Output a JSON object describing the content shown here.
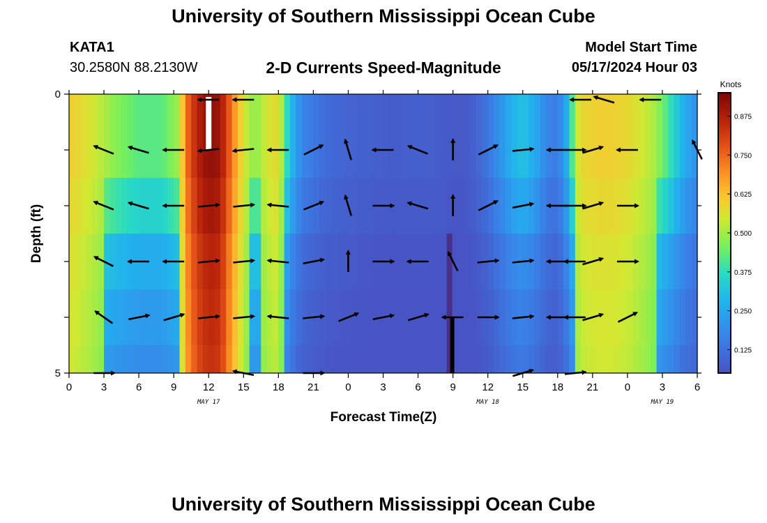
{
  "header": {
    "title": "University of Southern Mississippi Ocean Cube",
    "station_id": "KATA1",
    "station_coords": "30.2580N  88.2130W",
    "subtitle": "2-D Currents Speed-Magnitude",
    "start_label": "Model Start Time",
    "start_value": "05/17/2024 Hour 03"
  },
  "footer": {
    "title": "University of Southern Mississippi Ocean Cube"
  },
  "chart_data": {
    "type": "heatmap",
    "title": "2-D Currents Speed-Magnitude",
    "xlabel": "Forecast Time(Z)",
    "ylabel": "Depth (ft)",
    "colorbar_title": "Knots",
    "colorbar_ticks": [
      "0.125",
      "0.250",
      "0.375",
      "0.500",
      "0.625",
      "0.750",
      "0.875"
    ],
    "colorbar_range": [
      0.05,
      0.95
    ],
    "xlim": [
      0,
      54
    ],
    "ylim": [
      0,
      5
    ],
    "x_tick_labels": [
      "0",
      "3",
      "6",
      "9",
      "12",
      "15",
      "18",
      "21",
      "0",
      "3",
      "6",
      "9",
      "12",
      "15",
      "18",
      "21",
      "0",
      "3",
      "6"
    ],
    "y_tick_labels": [
      "0",
      "5"
    ],
    "date_labels": [
      {
        "text": "MAY 17",
        "x": 12
      },
      {
        "text": "MAY 18",
        "x": 36
      },
      {
        "text": "MAY 19",
        "x": 51
      }
    ],
    "speed_profile": [
      {
        "x": 0,
        "v": 0.6
      },
      {
        "x": 2,
        "v": 0.55
      },
      {
        "x": 4,
        "v": 0.47
      },
      {
        "x": 6,
        "v": 0.42
      },
      {
        "x": 8,
        "v": 0.42
      },
      {
        "x": 9.5,
        "v": 0.5
      },
      {
        "x": 10,
        "v": 0.72
      },
      {
        "x": 11,
        "v": 0.86
      },
      {
        "x": 12,
        "v": 0.92
      },
      {
        "x": 13,
        "v": 0.9
      },
      {
        "x": 14,
        "v": 0.72
      },
      {
        "x": 15,
        "v": 0.55
      },
      {
        "x": 16,
        "v": 0.47
      },
      {
        "x": 17,
        "v": 0.55
      },
      {
        "x": 18,
        "v": 0.58
      },
      {
        "x": 19,
        "v": 0.3
      },
      {
        "x": 20,
        "v": 0.17
      },
      {
        "x": 22,
        "v": 0.11
      },
      {
        "x": 24,
        "v": 0.09
      },
      {
        "x": 26,
        "v": 0.08
      },
      {
        "x": 28,
        "v": 0.07
      },
      {
        "x": 30,
        "v": 0.08
      },
      {
        "x": 32,
        "v": 0.07
      },
      {
        "x": 33,
        "v": 0.06
      },
      {
        "x": 34,
        "v": 0.06
      },
      {
        "x": 35,
        "v": 0.09
      },
      {
        "x": 36,
        "v": 0.13
      },
      {
        "x": 37,
        "v": 0.2
      },
      {
        "x": 38,
        "v": 0.27
      },
      {
        "x": 39,
        "v": 0.31
      },
      {
        "x": 40,
        "v": 0.26
      },
      {
        "x": 41,
        "v": 0.17
      },
      {
        "x": 42,
        "v": 0.14
      },
      {
        "x": 43,
        "v": 0.3
      },
      {
        "x": 43.5,
        "v": 0.52
      },
      {
        "x": 44,
        "v": 0.58
      },
      {
        "x": 46,
        "v": 0.6
      },
      {
        "x": 48,
        "v": 0.58
      },
      {
        "x": 50,
        "v": 0.52
      },
      {
        "x": 51,
        "v": 0.45
      },
      {
        "x": 52,
        "v": 0.35
      },
      {
        "x": 53,
        "v": 0.25
      },
      {
        "x": 54,
        "v": 0.2
      }
    ],
    "depth_factors": [
      1.0,
      1.0,
      0.82,
      0.6,
      0.5,
      0.42
    ],
    "vector_rows": [
      0.1,
      1,
      2,
      3,
      4,
      5
    ],
    "vectors": [
      [
        {
          "x": 12,
          "u": -1,
          "v": 0
        },
        {
          "x": 15,
          "u": -1,
          "v": 0
        },
        {
          "x": 44,
          "u": -1,
          "v": 0
        },
        {
          "x": 46,
          "u": -1,
          "v": 0.3
        },
        {
          "x": 50,
          "u": -1,
          "v": 0
        }
      ],
      [
        {
          "x": 3,
          "u": -1,
          "v": 0.4
        },
        {
          "x": 6,
          "u": -1,
          "v": 0.3
        },
        {
          "x": 9,
          "u": -1,
          "v": 0
        },
        {
          "x": 12,
          "u": -1,
          "v": -0.1
        },
        {
          "x": 15,
          "u": -1,
          "v": -0.1
        },
        {
          "x": 18,
          "u": -1,
          "v": 0
        },
        {
          "x": 21,
          "u": 1,
          "v": 0.5
        },
        {
          "x": 24,
          "u": -0.3,
          "v": 1
        },
        {
          "x": 27,
          "u": -1,
          "v": 0
        },
        {
          "x": 30,
          "u": -1,
          "v": 0.4
        },
        {
          "x": 33,
          "u": 0,
          "v": 1
        },
        {
          "x": 36,
          "u": 1,
          "v": 0.5
        },
        {
          "x": 39,
          "u": 1,
          "v": 0.1
        },
        {
          "x": 42,
          "u": -1,
          "v": 0
        },
        {
          "x": 43.5,
          "u": 1,
          "v": 0
        },
        {
          "x": 45,
          "u": 1,
          "v": 0.3
        },
        {
          "x": 48,
          "u": -1,
          "v": 0
        },
        {
          "x": 54,
          "u": -0.5,
          "v": 1
        }
      ],
      [
        {
          "x": 3,
          "u": -1,
          "v": 0.4
        },
        {
          "x": 6,
          "u": -1,
          "v": 0.3
        },
        {
          "x": 9,
          "u": -1,
          "v": 0
        },
        {
          "x": 12,
          "u": 1,
          "v": 0.1
        },
        {
          "x": 15,
          "u": 1,
          "v": 0.1
        },
        {
          "x": 18,
          "u": -1,
          "v": 0.1
        },
        {
          "x": 21,
          "u": 1,
          "v": 0.4
        },
        {
          "x": 24,
          "u": -0.3,
          "v": 1
        },
        {
          "x": 27,
          "u": 1,
          "v": 0
        },
        {
          "x": 30,
          "u": -1,
          "v": 0.3
        },
        {
          "x": 33,
          "u": 0,
          "v": 1
        },
        {
          "x": 36,
          "u": 1,
          "v": 0.5
        },
        {
          "x": 39,
          "u": 1,
          "v": 0.2
        },
        {
          "x": 42,
          "u": -1,
          "v": 0
        },
        {
          "x": 43.5,
          "u": 1,
          "v": 0
        },
        {
          "x": 45,
          "u": 1,
          "v": 0.3
        },
        {
          "x": 48,
          "u": 1,
          "v": 0
        }
      ],
      [
        {
          "x": 3,
          "u": -1,
          "v": 0.5
        },
        {
          "x": 6,
          "u": -1,
          "v": 0
        },
        {
          "x": 9,
          "u": -1,
          "v": 0
        },
        {
          "x": 12,
          "u": 1,
          "v": 0.1
        },
        {
          "x": 15,
          "u": 1,
          "v": 0.1
        },
        {
          "x": 18,
          "u": -1,
          "v": 0.1
        },
        {
          "x": 21,
          "u": 1,
          "v": 0.2
        },
        {
          "x": 24,
          "u": 0,
          "v": 1
        },
        {
          "x": 27,
          "u": 1,
          "v": 0
        },
        {
          "x": 30,
          "u": -1,
          "v": 0
        },
        {
          "x": 33,
          "u": -0.5,
          "v": 1
        },
        {
          "x": 36,
          "u": 1,
          "v": 0.1
        },
        {
          "x": 39,
          "u": 1,
          "v": 0.1
        },
        {
          "x": 42,
          "u": -1,
          "v": 0
        },
        {
          "x": 43.5,
          "u": -1,
          "v": 0
        },
        {
          "x": 45,
          "u": 1,
          "v": 0.3
        },
        {
          "x": 48,
          "u": 1,
          "v": 0
        }
      ],
      [
        {
          "x": 3,
          "u": -1,
          "v": 0.7
        },
        {
          "x": 6,
          "u": 1,
          "v": 0.2
        },
        {
          "x": 9,
          "u": 1,
          "v": 0.3
        },
        {
          "x": 12,
          "u": 1,
          "v": 0.1
        },
        {
          "x": 15,
          "u": 1,
          "v": 0.1
        },
        {
          "x": 18,
          "u": -1,
          "v": 0.1
        },
        {
          "x": 21,
          "u": 1,
          "v": 0.1
        },
        {
          "x": 24,
          "u": 1,
          "v": 0.4
        },
        {
          "x": 27,
          "u": 1,
          "v": 0.2
        },
        {
          "x": 30,
          "u": 1,
          "v": 0.3
        },
        {
          "x": 33,
          "u": -1,
          "v": 0
        },
        {
          "x": 36,
          "u": 1,
          "v": 0
        },
        {
          "x": 39,
          "u": 1,
          "v": 0.1
        },
        {
          "x": 42,
          "u": -1,
          "v": 0
        },
        {
          "x": 43.5,
          "u": -1,
          "v": 0
        },
        {
          "x": 45,
          "u": 1,
          "v": 0.3
        },
        {
          "x": 48,
          "u": 1,
          "v": 0.5
        }
      ],
      [
        {
          "x": 3,
          "u": 1,
          "v": 0
        },
        {
          "x": 15,
          "u": -1,
          "v": 0.2
        },
        {
          "x": 21,
          "u": 1,
          "v": 0
        },
        {
          "x": 39,
          "u": 1,
          "v": 0.3
        },
        {
          "x": 43.5,
          "u": 1,
          "v": 0.1
        }
      ]
    ],
    "white_gap": {
      "x": 12,
      "depth_from": 0,
      "depth_to": 1
    },
    "dark_column": {
      "x": 32.7,
      "depth_from": 2.5,
      "depth_to": 5
    }
  }
}
